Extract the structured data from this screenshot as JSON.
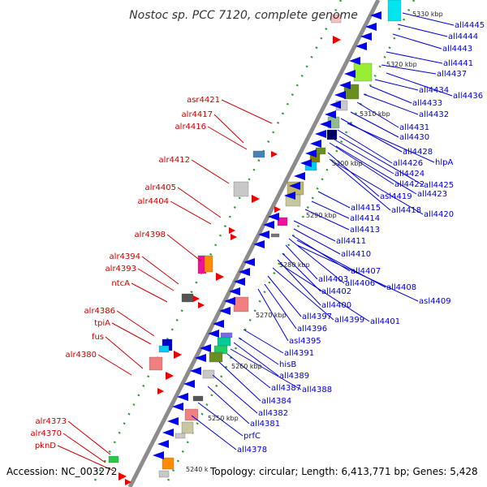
{
  "title": "Nostoc sp. PCC 7120, complete genome",
  "footer": {
    "accession": "Accession: NC_003272",
    "topology": "Topology: circular; Length: 6,413,771 bp; Genes: 5,428"
  },
  "colors": {
    "forward_label": "#cc0000",
    "reverse_label": "#0000cc",
    "forward_arrow": "#ee0000",
    "reverse_arrow": "#0000ee",
    "backbone": "#8c8c8c",
    "tick": "#2a9d2a"
  },
  "ruler_labels": [
    "5330 kbp",
    "5320 kbp",
    "5310 kbp",
    "5300 kbp",
    "5290 kbp",
    "5280 kbp",
    "5270 kbp",
    "5260 kbp",
    "5250 kbp",
    "5240 k"
  ],
  "forward_genes": [
    "asr4421",
    "alr4417",
    "alr4416",
    "alr4412",
    "alr4405",
    "alr4404",
    "alr4398",
    "alr4394",
    "alr4393",
    "ntcA",
    "alr4386",
    "tpiA",
    "fus",
    "alr4380",
    "alr4373",
    "alr4370",
    "pknD"
  ],
  "reverse_genes": [
    "all4445",
    "all4444",
    "all4443",
    "all4441",
    "all4437",
    "all4436",
    "all4434",
    "all4433",
    "all4432",
    "all4431",
    "all4430",
    "all4428",
    "hlpA",
    "all4426",
    "all4425",
    "all4424",
    "all4422",
    "all4423",
    "asl4419",
    "all4418",
    "all4420",
    "all4415",
    "all4414",
    "all4413",
    "all4411",
    "all4410",
    "all4407",
    "all4406",
    "all4408",
    "all4403",
    "asl4409",
    "all4402",
    "all4400",
    "all4399",
    "all4401",
    "all4397",
    "all4396",
    "asl4395",
    "all4391",
    "hisB",
    "all4389",
    "all4388",
    "all4387",
    "all4384",
    "all4382",
    "all4381",
    "prfC",
    "all4378"
  ]
}
